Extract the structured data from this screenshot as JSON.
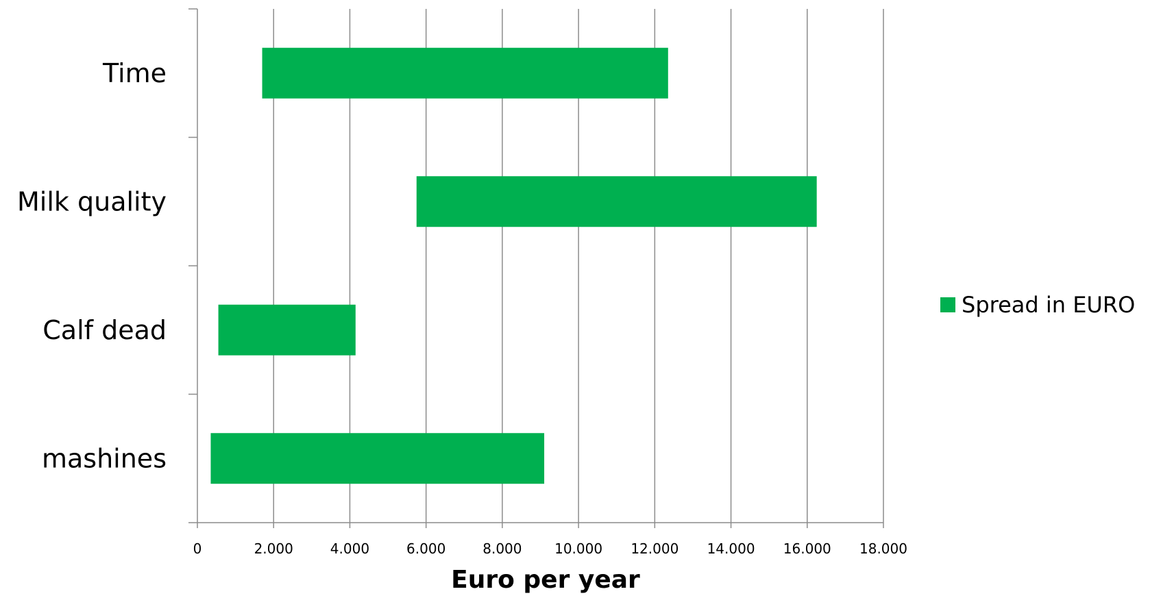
{
  "chart_data": {
    "type": "bar",
    "orientation": "horizontal",
    "style": "floating-range",
    "categories": [
      "Time",
      "Milk quality",
      "Calf dead",
      "mashines"
    ],
    "series": [
      {
        "name": "Spread in EURO",
        "color": "#00b050",
        "ranges": [
          [
            1700,
            12350
          ],
          [
            5750,
            16250
          ],
          [
            550,
            4150
          ],
          [
            350,
            9100
          ]
        ]
      }
    ],
    "xlabel": "Euro per year",
    "ylabel": "",
    "xlim": [
      0,
      18000
    ],
    "x_ticks": [
      0,
      2000,
      4000,
      6000,
      8000,
      10000,
      12000,
      14000,
      16000,
      18000
    ],
    "x_tick_labels": [
      "0",
      "2.000",
      "4.000",
      "6.000",
      "8.000",
      "10.000",
      "12.000",
      "14.000",
      "16.000",
      "18.000"
    ],
    "grid": "vertical",
    "legend_position": "right"
  }
}
